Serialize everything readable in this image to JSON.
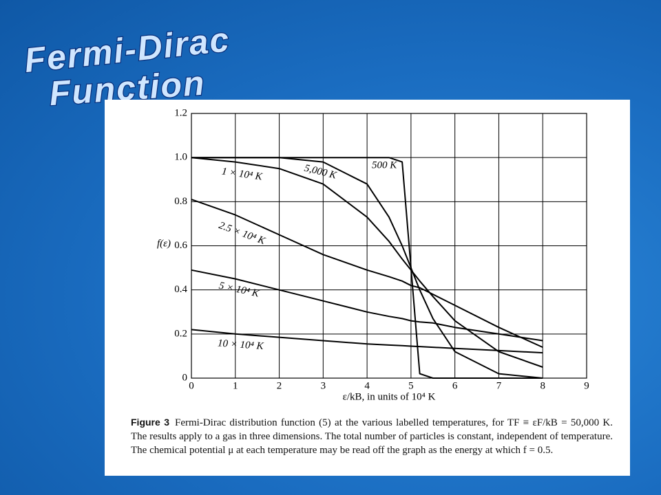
{
  "slide": {
    "title_lines": [
      "Fermi-Dirac",
      "Function"
    ]
  },
  "chart_data": {
    "type": "line",
    "x_label": "ε/kB, in units of 10⁴ K",
    "y_label": "f(ε)",
    "x": [
      0,
      1,
      2,
      3,
      4,
      4.5,
      4.8,
      5,
      5.2,
      5.5,
      6,
      7,
      8
    ],
    "series": [
      {
        "name": "500 K",
        "color": "#000000",
        "values": [
          1,
          1,
          1,
          1,
          1,
          1,
          0.98,
          0.5,
          0.02,
          0,
          0,
          0,
          0
        ]
      },
      {
        "name": "5,000 K",
        "color": "#000000",
        "values": [
          1,
          1,
          1,
          0.98,
          0.88,
          0.73,
          0.6,
          0.5,
          0.4,
          0.27,
          0.12,
          0.02,
          0
        ]
      },
      {
        "name": "1 × 10⁴ K",
        "color": "#000000",
        "values": [
          1,
          0.98,
          0.95,
          0.88,
          0.73,
          0.62,
          0.54,
          0.49,
          0.44,
          0.37,
          0.26,
          0.12,
          0.05
        ]
      },
      {
        "name": "2.5 × 10⁴ K",
        "color": "#000000",
        "values": [
          0.81,
          0.74,
          0.65,
          0.56,
          0.49,
          0.46,
          0.44,
          0.42,
          0.41,
          0.38,
          0.33,
          0.23,
          0.14
        ]
      },
      {
        "name": "5 × 10⁴ K",
        "color": "#000000",
        "values": [
          0.49,
          0.45,
          0.4,
          0.35,
          0.3,
          0.28,
          0.27,
          0.26,
          0.255,
          0.25,
          0.23,
          0.2,
          0.17
        ]
      },
      {
        "name": "10 × 10⁴ K",
        "color": "#000000",
        "values": [
          0.22,
          0.2,
          0.185,
          0.17,
          0.155,
          0.15,
          0.147,
          0.145,
          0.143,
          0.14,
          0.135,
          0.125,
          0.115
        ]
      }
    ],
    "xlim": [
      0,
      9
    ],
    "ylim": [
      0,
      1.2
    ],
    "xticks": [
      0,
      1,
      2,
      3,
      4,
      5,
      6,
      7,
      8,
      9
    ],
    "yticks": [
      0,
      0.2,
      0.4,
      0.6,
      0.8,
      {
        "value": 1,
        "label": "1.0"
      },
      1.2
    ],
    "grid": true,
    "caption_label": "Figure 3",
    "caption": "Fermi-Dirac distribution function (5) at the various labelled temperatures, for TF ≡ εF/kB = 50,000 K. The results apply to a gas in three dimensions. The total number of particles is constant, independent of temperature. The chemical potential μ at each temperature may be read off the graph as the energy at which f = 0.5."
  }
}
